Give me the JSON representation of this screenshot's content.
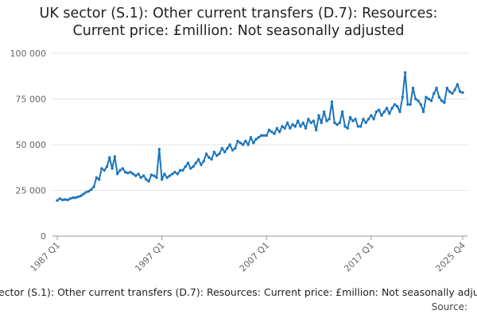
{
  "chart_data": {
    "type": "line",
    "title": "UK sector (S.1): Other current transfers (D.7): Resources: Current price: £million: Not seasonally adjusted",
    "source": "Source:",
    "categories": [
      "1987 Q1",
      null,
      null,
      null,
      null,
      null,
      null,
      null,
      null,
      null,
      null,
      null,
      null,
      null,
      null,
      null,
      null,
      null,
      null,
      null,
      null,
      null,
      null,
      null,
      null,
      null,
      null,
      null,
      null,
      null,
      null,
      null,
      null,
      null,
      null,
      null,
      null,
      null,
      null,
      null,
      "1997 Q1",
      null,
      null,
      null,
      null,
      null,
      null,
      null,
      null,
      null,
      null,
      null,
      null,
      null,
      null,
      null,
      null,
      null,
      null,
      null,
      null,
      null,
      null,
      null,
      null,
      null,
      null,
      null,
      null,
      null,
      null,
      null,
      null,
      null,
      null,
      null,
      null,
      null,
      null,
      null,
      "2007 Q1",
      null,
      null,
      null,
      null,
      null,
      null,
      null,
      null,
      null,
      null,
      null,
      null,
      null,
      null,
      null,
      null,
      null,
      null,
      null,
      null,
      null,
      null,
      null,
      null,
      null,
      null,
      null,
      null,
      null,
      null,
      null,
      null,
      null,
      null,
      null,
      null,
      null,
      null,
      null,
      "2017 Q1",
      null,
      null,
      null,
      null,
      null,
      null,
      null,
      null,
      null,
      null,
      null,
      null,
      null,
      null,
      null,
      null,
      null,
      null,
      null,
      null,
      null,
      null,
      null,
      null,
      null,
      null,
      null,
      null,
      null,
      null,
      null,
      null,
      null,
      null,
      "2025 Q4"
    ],
    "series": [
      {
        "name": "UK sector (S.1): Other current transfers (D.7): Resources: Current price: £million: Not seasonally adjusted",
        "color": "#1c75bc",
        "values": [
          19500,
          20500,
          19800,
          20000,
          19800,
          20500,
          21000,
          21000,
          21500,
          22000,
          23000,
          24000,
          24500,
          25500,
          27000,
          32000,
          31000,
          37000,
          36000,
          38000,
          43000,
          37000,
          43500,
          34000,
          36000,
          37000,
          35000,
          34500,
          35000,
          34000,
          33000,
          34000,
          32000,
          33000,
          31000,
          30000,
          33500,
          33000,
          32000,
          47500,
          31000,
          34000,
          32000,
          33000,
          34000,
          35000,
          34000,
          36000,
          36000,
          38000,
          40000,
          37000,
          38000,
          40000,
          42000,
          39000,
          41000,
          45000,
          43000,
          42000,
          46000,
          44000,
          45000,
          48000,
          46000,
          48000,
          50000,
          47000,
          48000,
          52000,
          51000,
          50000,
          52000,
          50000,
          54000,
          51000,
          53000,
          54000,
          55000,
          55000,
          55000,
          58000,
          57000,
          56000,
          59000,
          57000,
          60000,
          59000,
          62000,
          59000,
          61000,
          60000,
          63000,
          60000,
          62000,
          59000,
          64000,
          62000,
          63000,
          58000,
          66000,
          62000,
          68000,
          63000,
          64000,
          73500,
          62000,
          61000,
          62000,
          68000,
          60000,
          59000,
          65000,
          63000,
          64000,
          60000,
          60000,
          64000,
          62000,
          64000,
          66000,
          64000,
          68000,
          69000,
          66000,
          68000,
          70000,
          67000,
          70000,
          72000,
          71000,
          68000,
          76000,
          89500,
          72000,
          72000,
          81000,
          75000,
          74000,
          72000,
          68000,
          76000,
          75000,
          74000,
          78000,
          81000,
          76000,
          74000,
          73000,
          81000,
          79000,
          78000,
          80000,
          83000,
          79000,
          78500
        ]
      }
    ],
    "ylim": [
      0,
      100000
    ],
    "yticks": [
      0,
      {
        "value": 25000,
        "label": "25 000"
      },
      {
        "value": 50000,
        "label": "50 000"
      },
      {
        "value": 75000,
        "label": "75 000"
      },
      {
        "value": 100000,
        "label": "100 000"
      }
    ],
    "grid": true
  }
}
